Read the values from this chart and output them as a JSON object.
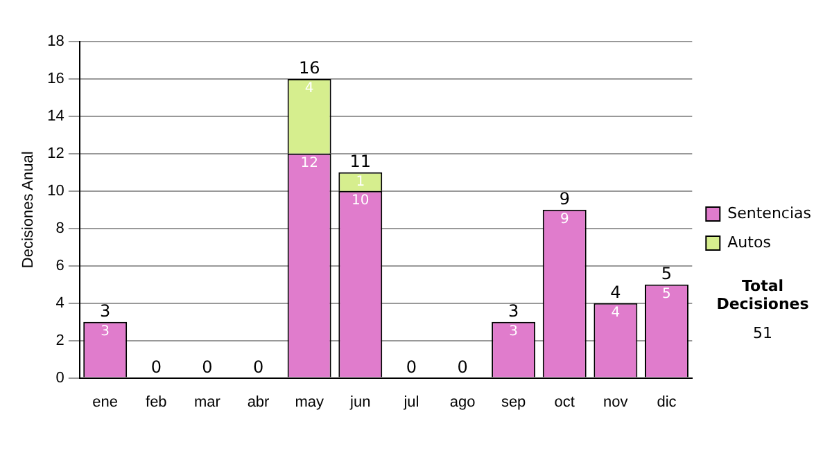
{
  "chart_data": {
    "type": "bar",
    "stacked": true,
    "ylabel": "Decisiones Anual",
    "categories": [
      "ene",
      "feb",
      "mar",
      "abr",
      "may",
      "jun",
      "jul",
      "ago",
      "sep",
      "oct",
      "nov",
      "dic"
    ],
    "series": [
      {
        "name": "Sentencias",
        "color": "#e07ccc",
        "values": [
          3,
          0,
          0,
          0,
          12,
          10,
          0,
          0,
          3,
          9,
          4,
          5
        ],
        "value_labels": [
          "3",
          null,
          null,
          null,
          "12",
          "10",
          null,
          null,
          "3",
          "9",
          "4",
          "5"
        ]
      },
      {
        "name": "Autos",
        "color": "#d6ee8e",
        "values": [
          0,
          0,
          0,
          0,
          4,
          1,
          0,
          0,
          0,
          0,
          0,
          0
        ],
        "value_labels": [
          null,
          null,
          null,
          null,
          "4",
          "1",
          null,
          null,
          null,
          null,
          null,
          null
        ]
      }
    ],
    "totals": [
      "3",
      "0",
      "0",
      "0",
      "16",
      "11",
      "0",
      "0",
      "3",
      "9",
      "4",
      "5"
    ],
    "ylim": [
      0,
      18
    ],
    "yticks": [
      0,
      2,
      4,
      6,
      8,
      10,
      12,
      14,
      16,
      18
    ],
    "grid": "y",
    "legend": "right",
    "annotations": [
      "Total Decisiones",
      "51"
    ]
  }
}
